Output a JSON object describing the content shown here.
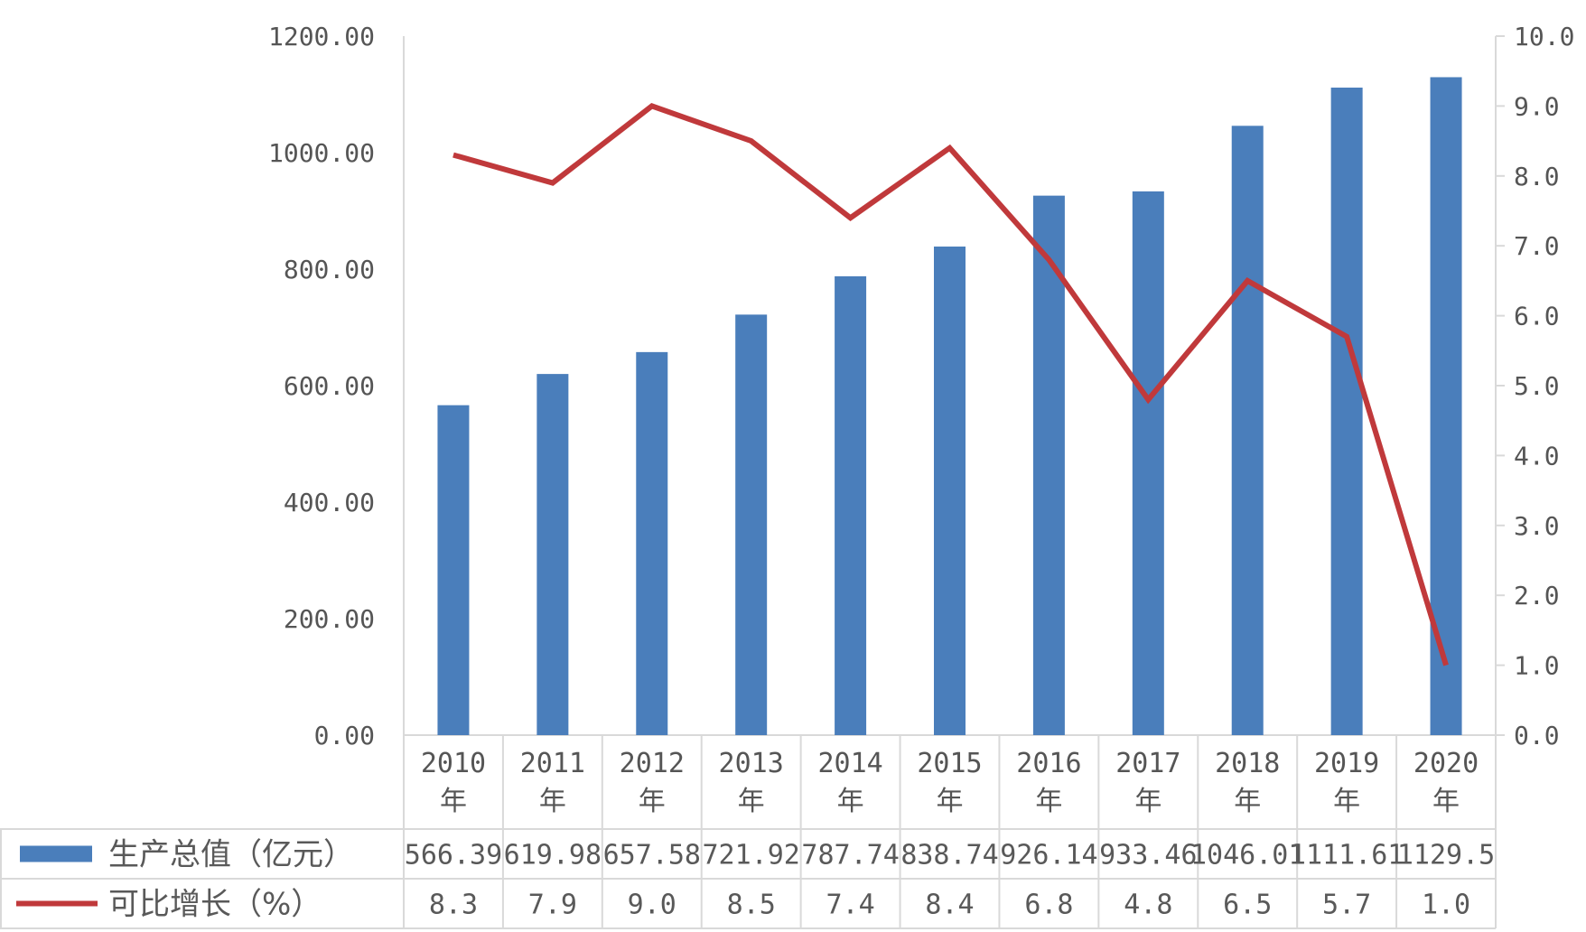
{
  "chart_data": {
    "type": "bar",
    "categories": [
      "2010\n年",
      "2011\n年",
      "2012\n年",
      "2013\n年",
      "2014\n年",
      "2015\n年",
      "2016\n年",
      "2017\n年",
      "2018\n年",
      "2019\n年",
      "2020\n年"
    ],
    "series": [
      {
        "name": "生产总值（亿元）",
        "type": "bar",
        "axis": "left",
        "color": "#4a7ebb",
        "values": [
          566.39,
          619.98,
          657.58,
          721.92,
          787.74,
          838.74,
          926.14,
          933.46,
          1046.01,
          1111.61,
          1129.5
        ],
        "labels": [
          "566.39",
          "619.98",
          "657.58",
          "721.92",
          "787.74",
          "838.74",
          "926.14",
          "933.46",
          "1046.01",
          "1111.61",
          "1129.5"
        ]
      },
      {
        "name": "可比增长（%）",
        "type": "line",
        "axis": "right",
        "color": "#c0393b",
        "values": [
          8.3,
          7.9,
          9.0,
          8.5,
          7.4,
          8.4,
          6.8,
          4.8,
          6.5,
          5.7,
          1.0
        ],
        "labels": [
          "8.3",
          "7.9",
          "9.0",
          "8.5",
          "7.4",
          "8.4",
          "6.8",
          "4.8",
          "6.5",
          "5.7",
          "1.0"
        ]
      }
    ],
    "y_left": {
      "ylim": [
        0,
        1200
      ],
      "ticks": [
        "0.00",
        "200.00",
        "400.00",
        "600.00",
        "800.00",
        "1000.00",
        "1200.00"
      ]
    },
    "y_right": {
      "ylim": [
        0,
        10
      ],
      "ticks": [
        "0.0",
        "1.0",
        "2.0",
        "3.0",
        "4.0",
        "5.0",
        "6.0",
        "7.0",
        "8.0",
        "9.0",
        "10.0"
      ]
    },
    "grid": false,
    "legend": "data-table-bottom"
  }
}
